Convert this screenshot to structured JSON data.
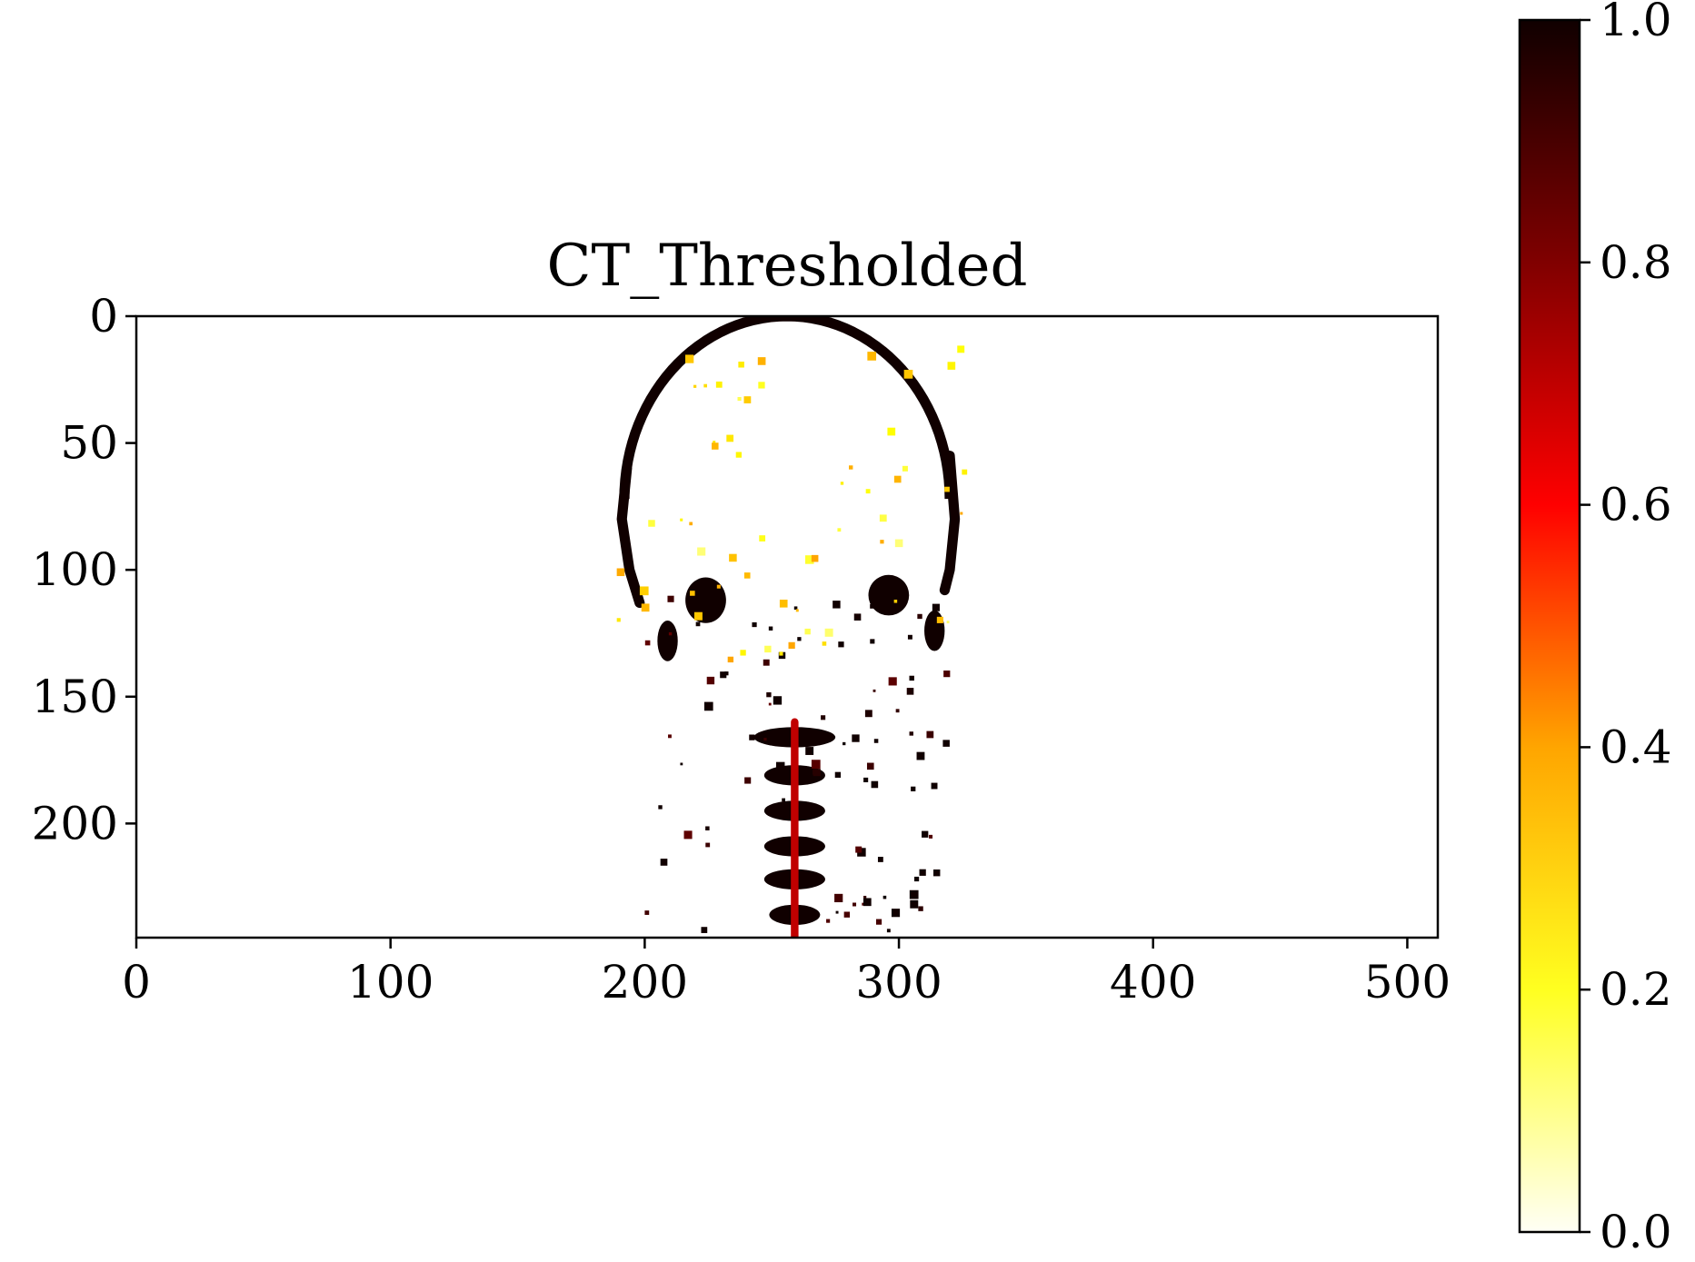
{
  "chart_data": {
    "type": "heatmap",
    "title": "CT_Thresholded",
    "xlabel": "",
    "ylabel": "",
    "xlim": [
      0,
      512
    ],
    "ylim": [
      245,
      0
    ],
    "xticks": [
      0,
      100,
      200,
      300,
      400,
      500
    ],
    "xtick_labels": [
      "0",
      "100",
      "200",
      "300",
      "400",
      "500"
    ],
    "yticks": [
      0,
      50,
      100,
      150,
      200
    ],
    "ytick_labels": [
      "0",
      "50",
      "100",
      "150",
      "200"
    ],
    "grid": false,
    "colormap": "hot_r",
    "colormap_stops": [
      "#fffff5",
      "#ffff00",
      "#ffa500",
      "#ff0000",
      "#800000",
      "#100000"
    ],
    "colorbar": {
      "range": [
        0.0,
        1.0
      ],
      "ticks": [
        0.0,
        0.2,
        0.4,
        0.6,
        0.8,
        1.0
      ],
      "tick_labels": [
        "0.0",
        "0.2",
        "0.4",
        "0.6",
        "0.8",
        "1.0"
      ],
      "placement": "right"
    },
    "regions": [
      {
        "name": "skull-vault-outline",
        "kind": "arc",
        "cx": 256,
        "cy": 72,
        "rx": 64,
        "ry": 72,
        "from_deg": 180,
        "to_deg": 360,
        "thickness": 4,
        "value": 1.0
      },
      {
        "name": "skull-left-side",
        "kind": "line",
        "points": [
          [
            193,
            60
          ],
          [
            191,
            80
          ],
          [
            194,
            100
          ],
          [
            198,
            113
          ]
        ],
        "thickness": 4,
        "value": 1.0
      },
      {
        "name": "skull-right-side",
        "kind": "line",
        "points": [
          [
            320,
            55
          ],
          [
            322,
            80
          ],
          [
            320,
            100
          ],
          [
            318,
            108
          ]
        ],
        "thickness": 4,
        "value": 1.0
      },
      {
        "name": "left-temporal-bone",
        "kind": "blob",
        "cx": 224,
        "cy": 112,
        "rx": 8,
        "ry": 9,
        "value": 1.0
      },
      {
        "name": "right-temporal-bone",
        "kind": "blob",
        "cx": 296,
        "cy": 110,
        "rx": 8,
        "ry": 8,
        "value": 1.0
      },
      {
        "name": "left-mastoid",
        "kind": "blob",
        "cx": 209,
        "cy": 128,
        "rx": 4,
        "ry": 8,
        "value": 1.0
      },
      {
        "name": "right-mastoid",
        "kind": "blob",
        "cx": 314,
        "cy": 124,
        "rx": 4,
        "ry": 8,
        "value": 1.0
      },
      {
        "name": "vertebra-c1",
        "kind": "blob",
        "cx": 259,
        "cy": 166,
        "rx": 16,
        "ry": 4,
        "value": 1.0
      },
      {
        "name": "vertebra-c2",
        "kind": "blob",
        "cx": 259,
        "cy": 181,
        "rx": 12,
        "ry": 4,
        "value": 1.0
      },
      {
        "name": "vertebra-c3",
        "kind": "blob",
        "cx": 259,
        "cy": 195,
        "rx": 12,
        "ry": 4,
        "value": 1.0
      },
      {
        "name": "vertebra-c4",
        "kind": "blob",
        "cx": 259,
        "cy": 209,
        "rx": 12,
        "ry": 4,
        "value": 1.0
      },
      {
        "name": "vertebra-c5",
        "kind": "blob",
        "cx": 259,
        "cy": 222,
        "rx": 12,
        "ry": 4,
        "value": 1.0
      },
      {
        "name": "vertebra-c6",
        "kind": "blob",
        "cx": 259,
        "cy": 236,
        "rx": 10,
        "ry": 4,
        "value": 1.0
      },
      {
        "name": "spine-column",
        "kind": "line",
        "points": [
          [
            259,
            160
          ],
          [
            259,
            245
          ]
        ],
        "thickness": 3,
        "value": 0.7
      },
      {
        "name": "scatter-bone-specks",
        "kind": "specks",
        "seed": 7,
        "count": 90,
        "bbox_data": [
          200,
          110,
          318,
          245
        ],
        "value": 1.0
      },
      {
        "name": "rim-yellow-speckle",
        "kind": "specks",
        "seed": 13,
        "count": 60,
        "bbox_data": [
          189,
          0,
          325,
          140
        ],
        "value": 0.25
      }
    ]
  }
}
